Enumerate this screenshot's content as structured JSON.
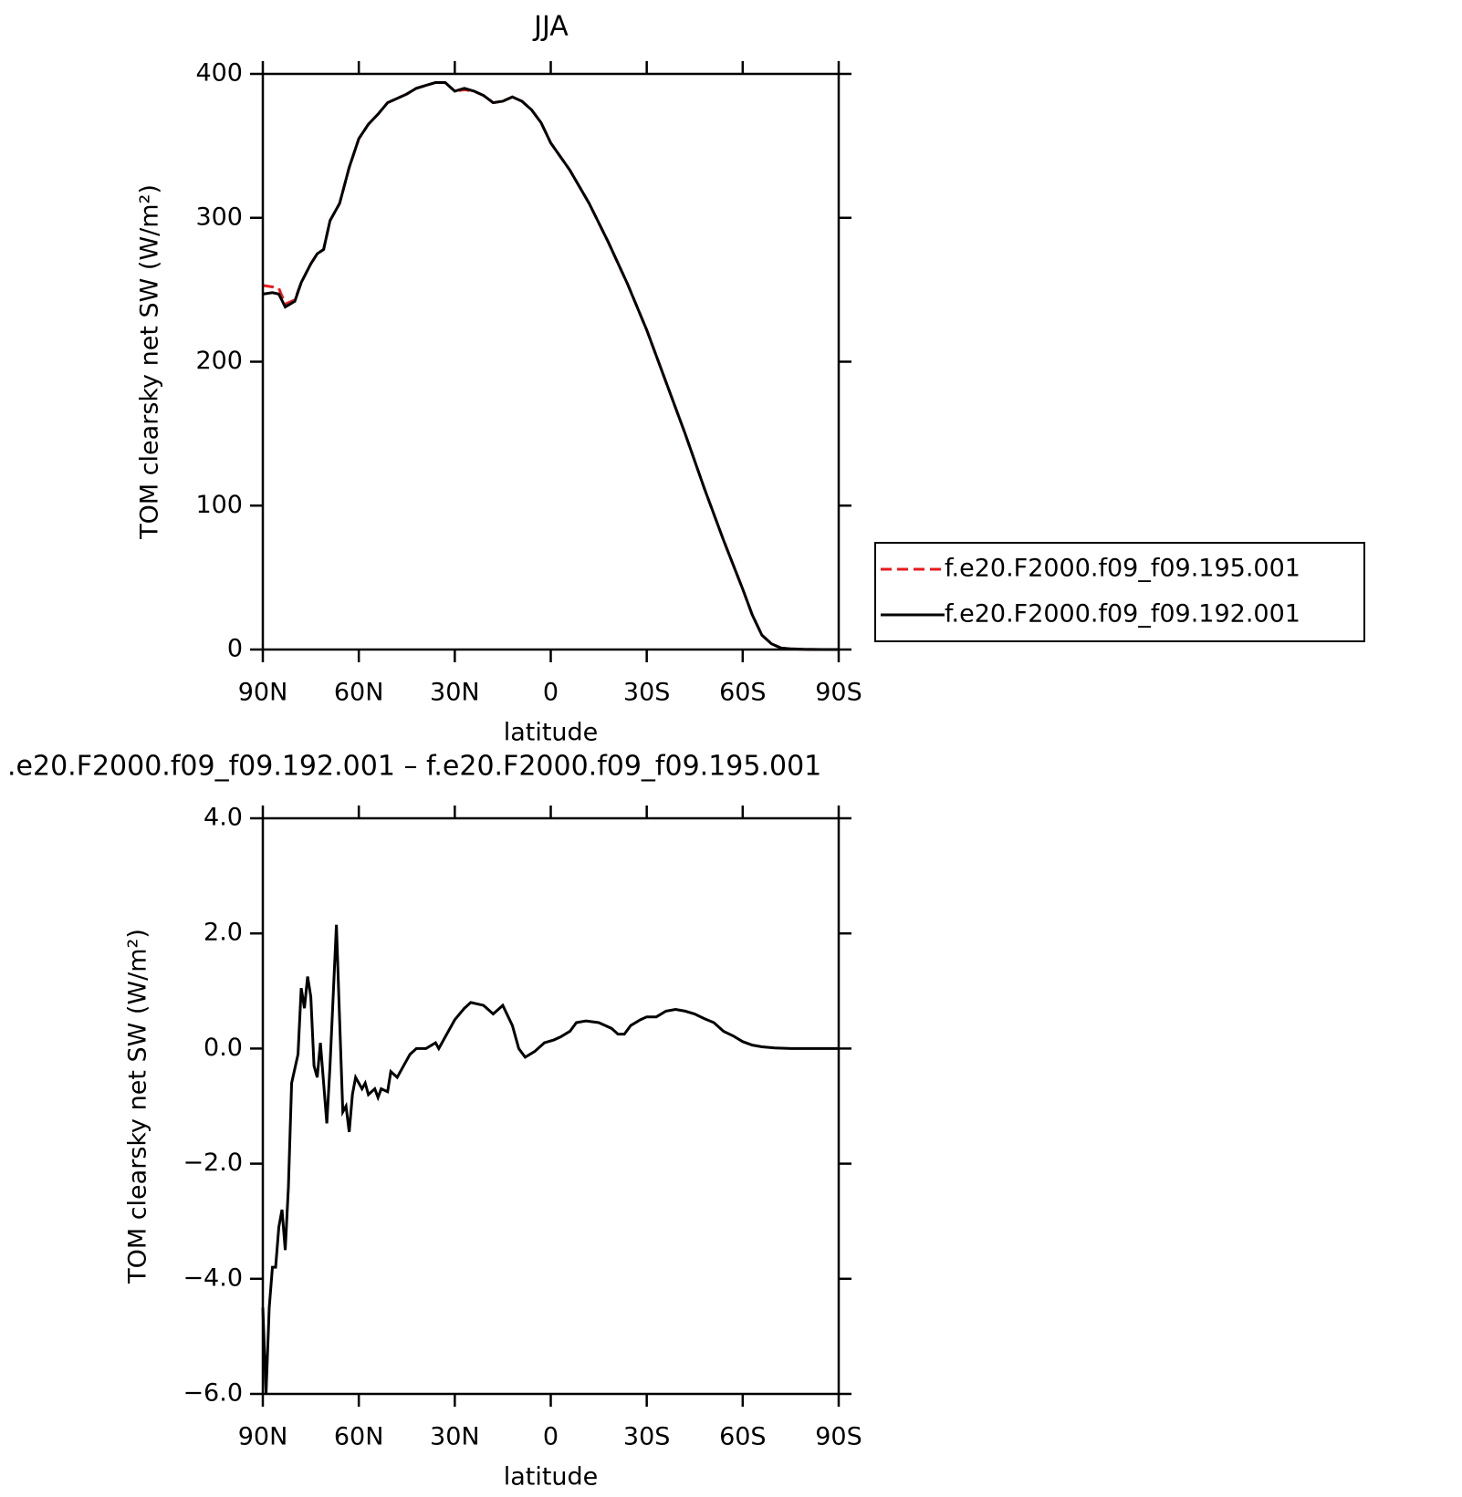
{
  "chart_data": [
    {
      "type": "line",
      "title": "JJA",
      "xlabel": "latitude",
      "ylabel": "TOM clearsky net SW (W/m²)",
      "x": [
        90,
        87,
        85,
        83,
        80,
        78,
        75,
        73,
        71,
        69,
        66,
        63,
        60,
        57,
        54,
        51,
        48,
        45,
        42,
        39,
        36,
        33,
        30,
        27,
        24,
        21,
        18,
        15,
        12,
        9,
        6,
        3,
        0,
        -6,
        -12,
        -18,
        -24,
        -30,
        -36,
        -42,
        -48,
        -54,
        -60,
        -63,
        -66,
        -69,
        -72,
        -75,
        -80,
        -85,
        -90
      ],
      "series": [
        {
          "name": "f.e20.F2000.f09_f09.195.001",
          "color": "#e8191b",
          "style": "dashed",
          "values": [
            253,
            252,
            251,
            240,
            243,
            255,
            268,
            275,
            278,
            298,
            310,
            335,
            355,
            365,
            372,
            380,
            383,
            386,
            390,
            392,
            394,
            394,
            388,
            389,
            388,
            385,
            380,
            381,
            384,
            381,
            375,
            366,
            352,
            333,
            310,
            283,
            254,
            222,
            186,
            150,
            112,
            76,
            42,
            24,
            10,
            4,
            1,
            0.5,
            0.1,
            0,
            0
          ]
        },
        {
          "name": "f.e20.F2000.f09_f09.192.001",
          "color": "#000000",
          "style": "solid",
          "values": [
            247,
            248,
            247,
            238,
            242,
            255,
            268,
            275,
            278,
            298,
            310,
            335,
            355,
            365,
            372,
            380,
            383,
            386,
            390,
            392,
            394,
            394,
            388,
            390,
            388,
            385,
            380,
            381,
            384,
            381,
            375,
            366,
            352,
            333,
            310,
            283,
            254,
            222,
            186,
            150,
            112,
            76,
            42,
            24,
            10,
            4,
            1,
            0.5,
            0.1,
            0,
            0
          ]
        }
      ],
      "xlim": [
        90,
        -90
      ],
      "ylim": [
        0,
        400
      ],
      "xticks": [
        {
          "value": 90,
          "label": "90N"
        },
        {
          "value": 60,
          "label": "60N"
        },
        {
          "value": 30,
          "label": "30N"
        },
        0,
        {
          "value": -30,
          "label": "30S"
        },
        {
          "value": -60,
          "label": "60S"
        },
        {
          "value": -90,
          "label": "90S"
        }
      ],
      "yticks": [
        0,
        100,
        200,
        300,
        400
      ],
      "legend": "outside-right"
    },
    {
      "type": "line",
      "title": ".e20.F2000.f09_f09.192.001 – f.e20.F2000.f09_f09.195.001",
      "xlabel": "latitude",
      "ylabel": "TOM clearsky net SW (W/m²)",
      "x": [
        90,
        89,
        88,
        87,
        86,
        85,
        84,
        83,
        82,
        81,
        79,
        78,
        77,
        76,
        75,
        74,
        73,
        72,
        71,
        70,
        69,
        67,
        66,
        65,
        64,
        63,
        62,
        61,
        59,
        58,
        57,
        55,
        54,
        53,
        51,
        50,
        48,
        46,
        44,
        42,
        39,
        36,
        35,
        33,
        30,
        27,
        25,
        21,
        18,
        15,
        12,
        10,
        8,
        5,
        2,
        -1,
        -3,
        -6,
        -8,
        -11,
        -15,
        -17,
        -19,
        -21,
        -23,
        -25,
        -28,
        -30,
        -33,
        -36,
        -39,
        -42,
        -45,
        -48,
        -51,
        -54,
        -57,
        -60,
        -63,
        -66,
        -70,
        -75,
        -90
      ],
      "series": [
        {
          "color": "#000000",
          "style": "solid",
          "values": [
            -4.5,
            -6,
            -4.5,
            -3.8,
            -3.8,
            -3.1,
            -2.8,
            -3.5,
            -2.4,
            -0.6,
            -0.1,
            1.05,
            0.7,
            1.25,
            0.9,
            -0.3,
            -0.5,
            0.1,
            -0.6,
            -1.3,
            -0.3,
            2.15,
            0.5,
            -1.1,
            -1.0,
            -1.45,
            -0.8,
            -0.5,
            -0.7,
            -0.6,
            -0.8,
            -0.7,
            -0.85,
            -0.7,
            -0.75,
            -0.4,
            -0.5,
            -0.3,
            -0.1,
            0,
            0,
            0.1,
            0,
            0.2,
            0.5,
            0.7,
            0.8,
            0.75,
            0.6,
            0.75,
            0.4,
            0,
            -0.15,
            -0.05,
            0.1,
            0.15,
            0.2,
            0.3,
            0.45,
            0.48,
            0.45,
            0.4,
            0.35,
            0.25,
            0.25,
            0.4,
            0.5,
            0.55,
            0.55,
            0.65,
            0.68,
            0.65,
            0.6,
            0.52,
            0.45,
            0.3,
            0.22,
            0.12,
            0.06,
            0.03,
            0.01,
            0,
            0
          ]
        }
      ],
      "xlim": [
        90,
        -90
      ],
      "ylim": [
        -6,
        4
      ],
      "xticks": [
        {
          "value": 90,
          "label": "90N"
        },
        {
          "value": 60,
          "label": "60N"
        },
        {
          "value": 30,
          "label": "30N"
        },
        0,
        {
          "value": -30,
          "label": "30S"
        },
        {
          "value": -60,
          "label": "60S"
        },
        {
          "value": -90,
          "label": "90S"
        }
      ],
      "yticks": [
        {
          "value": -6,
          "label": "−6.0"
        },
        {
          "value": -4,
          "label": "−4.0"
        },
        {
          "value": -2,
          "label": "−2.0"
        },
        {
          "value": 0,
          "label": "0.0"
        },
        {
          "value": 2,
          "label": "2.0"
        },
        {
          "value": 4,
          "label": "4.0"
        }
      ]
    }
  ]
}
